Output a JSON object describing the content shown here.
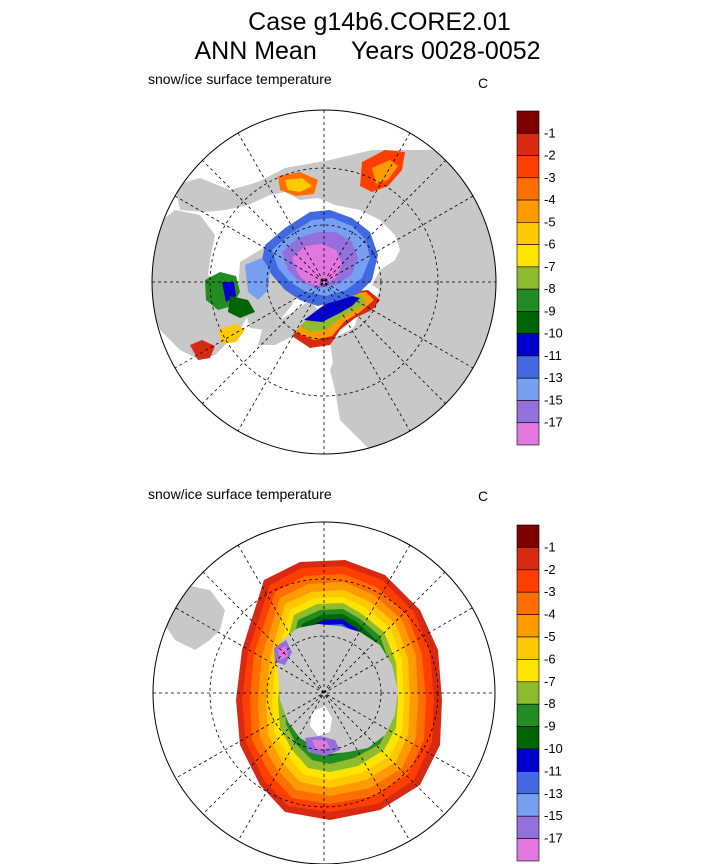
{
  "header": {
    "line1": "Case g14b6.CORE2.01",
    "line2": "ANN Mean     Years 0028-0052"
  },
  "colors": {
    "land": "#c8c8c8",
    "ocean": "#ffffff",
    "palette": [
      "#e277e0",
      "#9370db",
      "#779ff2",
      "#4169e1",
      "#0000cd",
      "#006400",
      "#228b22",
      "#8fbc2f",
      "#ffe400",
      "#ffc800",
      "#ff9a00",
      "#ff6f00",
      "#ff3e00",
      "#d82a13",
      "#800000"
    ]
  },
  "chart_data": [
    {
      "type": "heatmap",
      "hemisphere": "north",
      "title": "snow/ice surface temperature",
      "units": "C",
      "levels": [
        "-1",
        "-2",
        "-3",
        "-4",
        "-5",
        "-6",
        "-7",
        "-8",
        "-9",
        "-10",
        "-11",
        "-13",
        "-15",
        "-17"
      ],
      "min_value": -17,
      "max_value": -1
    },
    {
      "type": "heatmap",
      "hemisphere": "south",
      "title": "snow/ice surface temperature",
      "units": "C",
      "levels": [
        "-1",
        "-2",
        "-3",
        "-4",
        "-5",
        "-6",
        "-7",
        "-8",
        "-9",
        "-10",
        "-11",
        "-13",
        "-15",
        "-17"
      ],
      "min_value": -17,
      "max_value": -1
    }
  ]
}
